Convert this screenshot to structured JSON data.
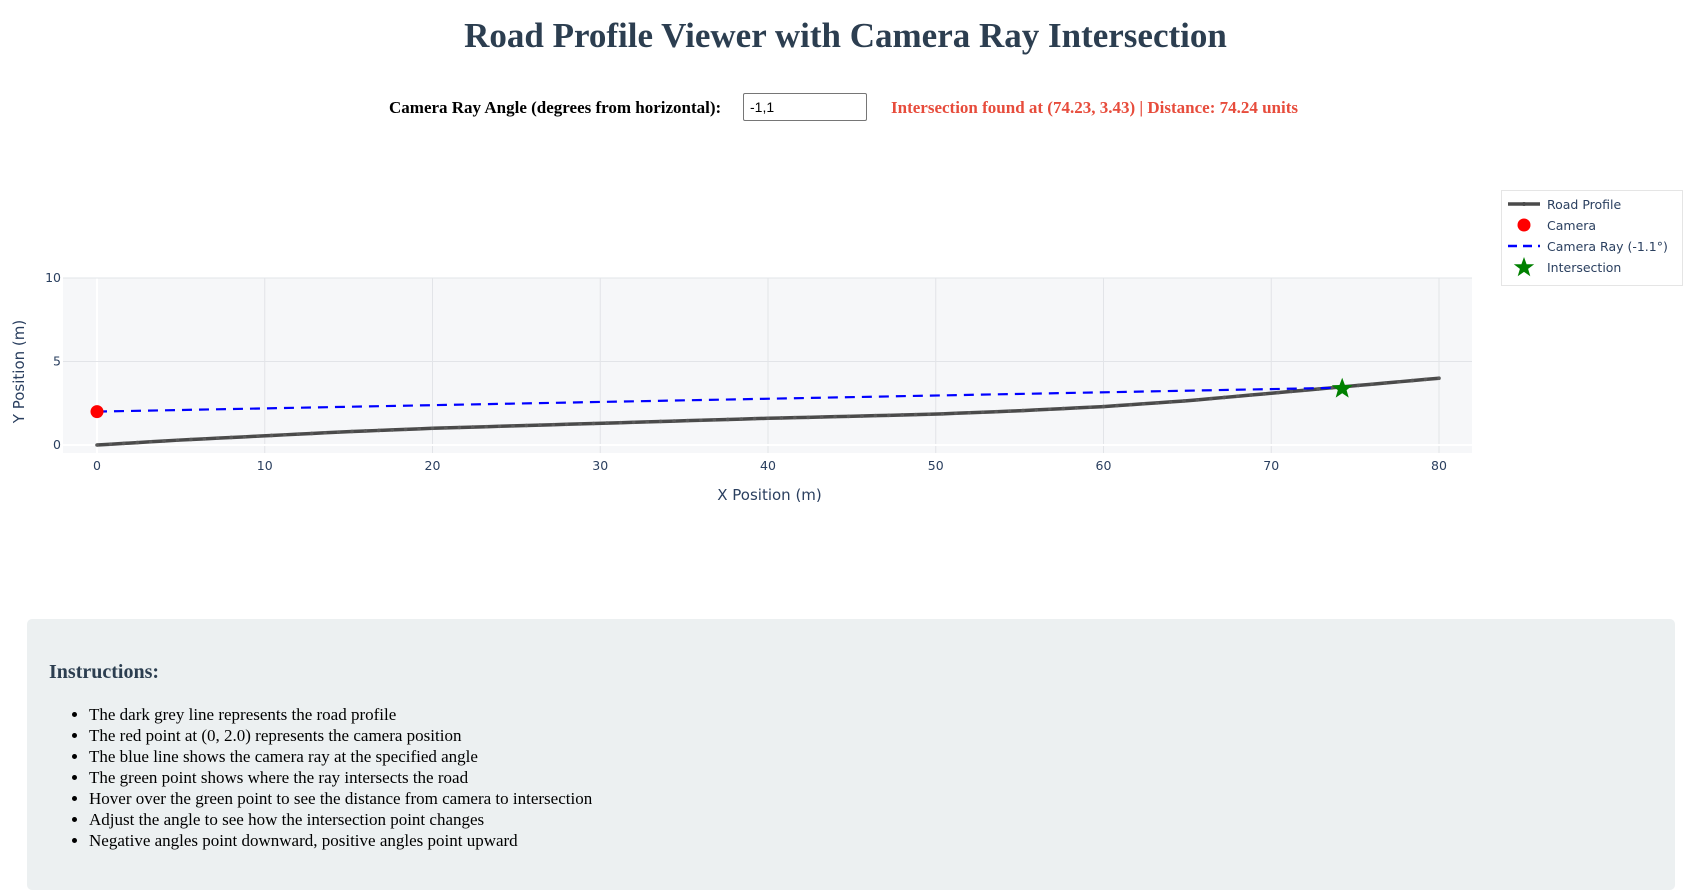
{
  "page": {
    "title": "Road Profile Viewer with Camera Ray Intersection"
  },
  "controls": {
    "angle_label": "Camera Ray Angle (degrees from horizontal):",
    "angle_value": "-1,1",
    "status": "Intersection found at (74.23, 3.43) | Distance: 74.24 units",
    "status_color": "#e74c3c"
  },
  "legend": {
    "items": [
      {
        "label": "Road Profile",
        "color": "#4a4a4a",
        "symbol": "line-marker"
      },
      {
        "label": "Camera",
        "color": "#ff0000",
        "symbol": "circle"
      },
      {
        "label": "Camera Ray (-1.1°)",
        "color": "#0000ff",
        "symbol": "dash"
      },
      {
        "label": "Intersection",
        "color": "#008000",
        "symbol": "star"
      }
    ]
  },
  "instructions": {
    "heading": "Instructions:",
    "items": [
      "The dark grey line represents the road profile",
      "The red point at (0, 2.0) represents the camera position",
      "The blue line shows the camera ray at the specified angle",
      "The green point shows where the ray intersects the road",
      "Hover over the green point to see the distance from camera to intersection",
      "Adjust the angle to see how the intersection point changes",
      "Negative angles point downward, positive angles point upward"
    ]
  },
  "chart_data": {
    "type": "line",
    "title": "",
    "xlabel": "X Position (m)",
    "ylabel": "Y Position (m)",
    "xlim": [
      -2.7,
      82.5
    ],
    "ylim": [
      -0.5,
      10
    ],
    "xticks": [
      0,
      10,
      20,
      30,
      40,
      50,
      60,
      70,
      80
    ],
    "yticks": [
      0,
      5,
      10
    ],
    "grid": true,
    "legend_position": "top-right-outside",
    "series": [
      {
        "name": "Road Profile",
        "type": "line+markers",
        "color": "#4a4a4a",
        "x": [
          0,
          5,
          10,
          15,
          20,
          25,
          30,
          35,
          40,
          45,
          50,
          55,
          60,
          65,
          70,
          75,
          80
        ],
        "y": [
          0.0,
          0.3,
          0.55,
          0.8,
          1.0,
          1.15,
          1.3,
          1.45,
          1.6,
          1.72,
          1.85,
          2.05,
          2.3,
          2.65,
          3.1,
          3.55,
          4.0
        ]
      },
      {
        "name": "Camera",
        "type": "marker",
        "color": "#ff0000",
        "x": [
          0
        ],
        "y": [
          2.0
        ]
      },
      {
        "name": "Camera Ray (-1.1°)",
        "type": "dashed-line",
        "color": "#0000ff",
        "x": [
          0,
          74.23
        ],
        "y": [
          2.0,
          3.43
        ]
      },
      {
        "name": "Intersection",
        "type": "star-marker",
        "color": "#008000",
        "x": [
          74.23
        ],
        "y": [
          3.43
        ]
      }
    ]
  }
}
